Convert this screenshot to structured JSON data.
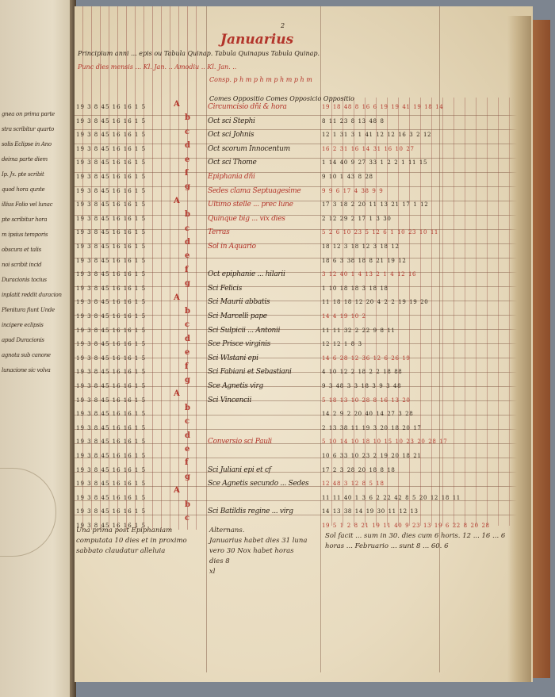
{
  "left_page": {
    "lines": [
      "gnea on prima parte",
      "stra scribitur quarto",
      "solis Eclipse in Ano",
      "deima parte diem",
      "Ip. Jx. pte scribit",
      "quod hora qunte",
      "illius Folio vel lunac",
      "pte scribitur hora",
      "m ipsius temporis",
      "obscura et talis",
      "noi scribit incid",
      "Duracionis tocius",
      "inplatit reddit duracion",
      "Plenitura fiunt Unde",
      "incipere eclipsis",
      "apud Duracionis",
      "agnota sub canone",
      "lunacione sic volva"
    ]
  },
  "page": {
    "folio_number": "2",
    "month_title": "Januarius",
    "heading_lines": [
      {
        "text": "Principium anni ... epis ou  Tabula Quinap.  Tabula Quinapus  Tabula Quinap.",
        "color": "#2a1e14"
      },
      {
        "text": "Punc dies mensis ... Kl. Jan. .. Amodiu .. Kl. Jan. ..",
        "color": "#b2342a"
      },
      {
        "text": "Consp.  p  h  m  p  h  m  p  h  m  p  h  m",
        "color": "#b2342a"
      },
      {
        "text": "Comes  Oppositio  Comes  Opposicio  Oppositio",
        "color": "#2a1e14"
      }
    ],
    "rows": [
      {
        "text": "Circumcisio dñi & hora",
        "color": "#b2342a",
        "digits": "19 18 48 8 16 6 19 19 41 19 18 14"
      },
      {
        "text": "Oct sci Stephi",
        "color": "#2a1e14",
        "digits": "8 11 23 8 13 48 8"
      },
      {
        "text": "Oct sci Johnis",
        "color": "#2a1e14",
        "digits": "12 1 31 3 1 41 12 12 16 3 2 12"
      },
      {
        "text": "Oct scorum Innocentum",
        "color": "#2a1e14",
        "digits": "16 2 31 16 14 31 16 10 27"
      },
      {
        "text": "Oct sci Thome",
        "color": "#2a1e14",
        "digits": "1 14 40 9 27 33 1 2 2 1 11 15"
      },
      {
        "text": "Epiphania dñi",
        "color": "#b2342a",
        "digits": "9 10 1 43 8 28"
      },
      {
        "text": "Sedes clama Septuagesime",
        "color": "#b2342a",
        "digits": "9 9 6 17 4 38 9 9"
      },
      {
        "text": "Ultimo stelle ... prec lune",
        "color": "#b2342a",
        "digits": "17 3 18 2 20 11 13 21 17 1 12"
      },
      {
        "text": "Quinque big ... vix dies",
        "color": "#b2342a",
        "digits": "2 12 29 2 17 1 3 30"
      },
      {
        "text": "Terras",
        "color": "#b2342a",
        "digits": "5 2 6 10 23 5 12 6 1 10 23 10 11"
      },
      {
        "text": "Sol in Aquario",
        "color": "#b2342a",
        "digits": "18 12 3 18 12 3 18 12"
      },
      {
        "text": "",
        "color": "#2a1e14",
        "digits": "18 6 3 38 18 8 21 19 12"
      },
      {
        "text": "Oct epiphanie ... hilarii",
        "color": "#2a1e14",
        "digits": "3 12 40 1 4 13 2 1 4 12 16"
      },
      {
        "text": "Sci Felicis",
        "color": "#2a1e14",
        "digits": "1 10 18 18 3 18 18"
      },
      {
        "text": "Sci Maurii abbatis",
        "color": "#2a1e14",
        "digits": "11 18 18 12 20 4 2 2 19 19 20"
      },
      {
        "text": "Sci Marcelli pape",
        "color": "#2a1e14",
        "digits": "14 4 19 10 2"
      },
      {
        "text": "Sci Sulpicii ... Antonii",
        "color": "#2a1e14",
        "digits": "11 11 32 2 22 9 8 11"
      },
      {
        "text": "Sce Prisce virginis",
        "color": "#2a1e14",
        "digits": "12 12 1 8 3"
      },
      {
        "text": "Sci Wlstani epi",
        "color": "#2a1e14",
        "digits": "14 6 28 12 36 12 6 26 19"
      },
      {
        "text": "Sci Fabiani et Sebastiani",
        "color": "#2a1e14",
        "digits": "4 10 12 2 18 2 2 18 88"
      },
      {
        "text": "Sce Agnetis virg",
        "color": "#2a1e14",
        "digits": "9 3 48 3 3 18 3 9 3 48"
      },
      {
        "text": "Sci Vincencii",
        "color": "#2a1e14",
        "digits": "5 18 13 10 28 8 16 13 20"
      },
      {
        "text": "",
        "color": "#2a1e14",
        "digits": "14 2 9 2 20 40 14 27 3 28"
      },
      {
        "text": "",
        "color": "#2a1e14",
        "digits": "2 13 38 11 19 3 20 18 20 17"
      },
      {
        "text": "Conversio sci Pauli",
        "color": "#b2342a",
        "digits": "5 10 14 10 18 10 15 10 23 20 28 17"
      },
      {
        "text": "",
        "color": "#2a1e14",
        "digits": "10 6 33 10 23 2 19 20 18 21"
      },
      {
        "text": "Sci Juliani epi et cf",
        "color": "#2a1e14",
        "digits": "17 2 3 28 20 18 8 18"
      },
      {
        "text": "Sce Agnetis secundo ... Sedes",
        "color": "#2a1e14",
        "digits": "12 48 3 12 8 5 18"
      },
      {
        "text": "",
        "color": "#2a1e14",
        "digits": "11 11 40 1 3 6 2 22 42 8 5 20 12 18 11"
      },
      {
        "text": "Sci Batildis regine ... virg",
        "color": "#2a1e14",
        "digits": "14 13 38 14 19 30 11 12 13"
      },
      {
        "text": "",
        "color": "#2a1e14",
        "digits": "19 5 1 2 8 21 19 11 40 9 23 13 19 6 22 8 20 28"
      }
    ],
    "kalendar_letters": [
      "A",
      "b",
      "c",
      "d",
      "e",
      "f",
      "g",
      "A",
      "b",
      "c",
      "d",
      "e",
      "f",
      "g",
      "A",
      "b",
      "c",
      "d",
      "e",
      "f",
      "g",
      "A",
      "b",
      "c",
      "d",
      "e",
      "f",
      "g",
      "A",
      "b",
      "c"
    ],
    "left_columns_text": "19 3 8 45 16 16 1 5",
    "footer": {
      "left_note": "Una prima post Epiphaniam computata 10 dies et in proximo sabbato claudatur alleluia",
      "middle_note": [
        "Alternans.",
        "Januarius habet dies 31 luna",
        "vero 30 Nox habet horas",
        "dies 8",
        "xl"
      ],
      "right_note": "Sol facit ... sum in 30. dies cum 6 horis. 12 ... 16 ... 6 horas ... Februario ... sunt 8 ... 60. 6"
    }
  },
  "colors": {
    "ink": "#2a1e14",
    "rubric": "#b2342a",
    "parchment": "#e8dbbf",
    "background": "#7d8590",
    "binding": "#8c4d2a"
  }
}
